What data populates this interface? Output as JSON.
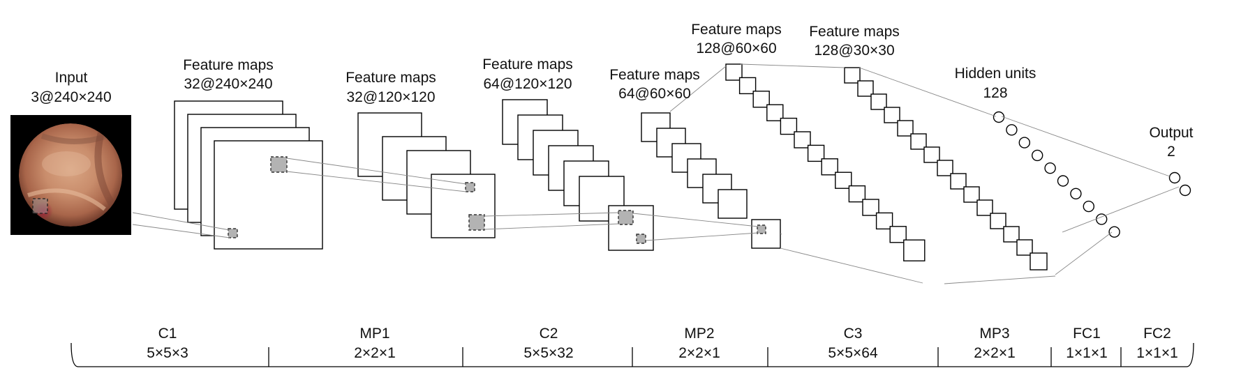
{
  "input": {
    "title": "Input",
    "dims": "3@240×240"
  },
  "feature_maps": [
    {
      "title": "Feature maps",
      "dims": "32@240×240"
    },
    {
      "title": "Feature maps",
      "dims": "32@120×120"
    },
    {
      "title": "Feature maps",
      "dims": "64@120×120"
    },
    {
      "title": "Feature maps",
      "dims": "64@60×60"
    },
    {
      "title": "Feature maps",
      "dims": "128@60×60"
    },
    {
      "title": "Feature maps",
      "dims": "128@30×30"
    }
  ],
  "hidden": {
    "title": "Hidden units",
    "count": "128"
  },
  "output": {
    "title": "Output",
    "count": "2"
  },
  "layers": [
    {
      "name": "C1",
      "kernel": "5×5×3"
    },
    {
      "name": "MP1",
      "kernel": "2×2×1"
    },
    {
      "name": "C2",
      "kernel": "5×5×32"
    },
    {
      "name": "MP2",
      "kernel": "2×2×1"
    },
    {
      "name": "C3",
      "kernel": "5×5×64"
    },
    {
      "name": "MP3",
      "kernel": "2×2×1"
    },
    {
      "name": "FC1",
      "kernel": "1×1×1"
    },
    {
      "name": "FC2",
      "kernel": "1×1×1"
    }
  ]
}
